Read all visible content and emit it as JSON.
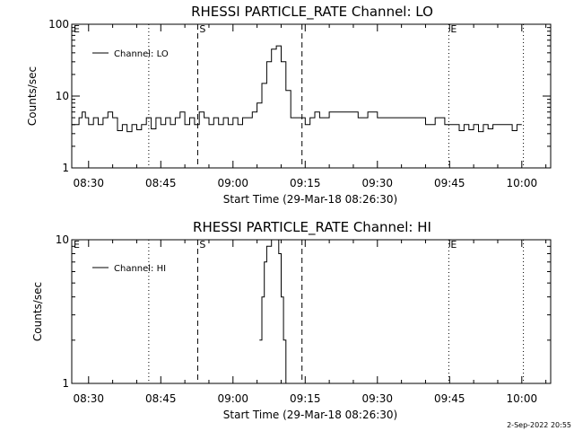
{
  "footer": {
    "timestamp": "2-Sep-2022 20:55"
  },
  "chart_data": [
    {
      "type": "line",
      "title": "RHESSI PARTICLE_RATE Channel: LO",
      "xlabel": "Start Time (29-Mar-18 08:26:30)",
      "ylabel": "Counts/sec",
      "y_scale": "log",
      "ylim": [
        1,
        100
      ],
      "y_ticks": [
        "1",
        "10",
        "100"
      ],
      "xlim": [
        "08:26:30",
        "10:06:00"
      ],
      "x_ticks": [
        "08:30",
        "08:45",
        "09:00",
        "09:15",
        "09:30",
        "09:45",
        "10:00"
      ],
      "legend": {
        "position": "top-left",
        "entries": [
          "Channel: LO"
        ]
      },
      "markers": [
        {
          "label": "E",
          "time": "08:26:30",
          "style": "none"
        },
        {
          "label": "",
          "time": "08:42:30",
          "style": "dotted"
        },
        {
          "label": "S",
          "time": "08:52:40",
          "style": "dashed"
        },
        {
          "label": "",
          "time": "09:14:20",
          "style": "dashed"
        },
        {
          "label": "E",
          "time": "09:44:50",
          "style": "dotted"
        },
        {
          "label": "",
          "time": "10:00:20",
          "style": "dotted"
        }
      ],
      "series": [
        {
          "name": "Channel: LO",
          "points": [
            [
              "08:26:30",
              4
            ],
            [
              "08:28:00",
              5
            ],
            [
              "08:28:40",
              6
            ],
            [
              "08:29:20",
              5
            ],
            [
              "08:30:00",
              4
            ],
            [
              "08:31:00",
              5
            ],
            [
              "08:32:00",
              4
            ],
            [
              "08:33:00",
              5
            ],
            [
              "08:34:00",
              6
            ],
            [
              "08:35:00",
              5
            ],
            [
              "08:36:00",
              3.3
            ],
            [
              "08:37:00",
              4
            ],
            [
              "08:38:00",
              3.2
            ],
            [
              "08:39:00",
              4
            ],
            [
              "08:40:00",
              3.4
            ],
            [
              "08:41:00",
              4
            ],
            [
              "08:42:00",
              5
            ],
            [
              "08:43:00",
              3.5
            ],
            [
              "08:44:00",
              5
            ],
            [
              "08:45:00",
              4
            ],
            [
              "08:46:00",
              5
            ],
            [
              "08:47:00",
              4
            ],
            [
              "08:48:00",
              5
            ],
            [
              "08:49:00",
              6
            ],
            [
              "08:50:00",
              4
            ],
            [
              "08:51:00",
              5
            ],
            [
              "08:52:00",
              4
            ],
            [
              "08:53:00",
              6
            ],
            [
              "08:54:00",
              5
            ],
            [
              "08:55:00",
              4
            ],
            [
              "08:56:00",
              5
            ],
            [
              "08:57:00",
              4
            ],
            [
              "08:58:00",
              5
            ],
            [
              "08:59:00",
              4
            ],
            [
              "09:00:00",
              5
            ],
            [
              "09:01:00",
              4
            ],
            [
              "09:02:00",
              5
            ],
            [
              "09:03:00",
              5
            ],
            [
              "09:04:00",
              6
            ],
            [
              "09:05:00",
              8
            ],
            [
              "09:06:00",
              15
            ],
            [
              "09:07:00",
              30
            ],
            [
              "09:08:00",
              45
            ],
            [
              "09:09:00",
              50
            ],
            [
              "09:10:00",
              30
            ],
            [
              "09:11:00",
              12
            ],
            [
              "09:12:00",
              5
            ],
            [
              "09:13:00",
              5
            ],
            [
              "09:14:00",
              5
            ],
            [
              "09:15:00",
              4
            ],
            [
              "09:16:00",
              5
            ],
            [
              "09:17:00",
              6
            ],
            [
              "09:18:00",
              5
            ],
            [
              "09:20:00",
              6
            ],
            [
              "09:22:00",
              6
            ],
            [
              "09:24:00",
              6
            ],
            [
              "09:26:00",
              5
            ],
            [
              "09:28:00",
              6
            ],
            [
              "09:30:00",
              5
            ],
            [
              "09:32:00",
              5
            ],
            [
              "09:34:00",
              5
            ],
            [
              "09:36:00",
              5
            ],
            [
              "09:38:00",
              5
            ],
            [
              "09:40:00",
              4
            ],
            [
              "09:42:00",
              5
            ],
            [
              "09:44:00",
              4
            ],
            [
              "09:46:00",
              4
            ],
            [
              "09:47:00",
              3.3
            ],
            [
              "09:48:00",
              4
            ],
            [
              "09:49:00",
              3.4
            ],
            [
              "09:50:00",
              4
            ],
            [
              "09:51:00",
              3.2
            ],
            [
              "09:52:00",
              4
            ],
            [
              "09:53:00",
              3.5
            ],
            [
              "09:54:00",
              4
            ],
            [
              "09:55:00",
              4
            ],
            [
              "09:57:00",
              4
            ],
            [
              "09:58:00",
              3.3
            ],
            [
              "09:59:00",
              4
            ],
            [
              "10:00:00",
              4
            ]
          ]
        }
      ]
    },
    {
      "type": "line",
      "title": "RHESSI PARTICLE_RATE Channel: HI",
      "xlabel": "Start Time (29-Mar-18 08:26:30)",
      "ylabel": "Counts/sec",
      "y_scale": "log",
      "ylim": [
        1,
        10
      ],
      "y_ticks": [
        "1",
        "10"
      ],
      "xlim": [
        "08:26:30",
        "10:06:00"
      ],
      "x_ticks": [
        "08:30",
        "08:45",
        "09:00",
        "09:15",
        "09:30",
        "09:45",
        "10:00"
      ],
      "legend": {
        "position": "top-left",
        "entries": [
          "Channel: HI"
        ]
      },
      "markers": [
        {
          "label": "E",
          "time": "08:26:30",
          "style": "none"
        },
        {
          "label": "",
          "time": "08:42:30",
          "style": "dotted"
        },
        {
          "label": "S",
          "time": "08:52:40",
          "style": "dashed"
        },
        {
          "label": "",
          "time": "09:14:20",
          "style": "dashed"
        },
        {
          "label": "E",
          "time": "09:44:50",
          "style": "dotted"
        },
        {
          "label": "",
          "time": "10:00:20",
          "style": "dotted"
        }
      ],
      "series": [
        {
          "name": "Channel: HI",
          "points": [
            [
              "09:05:30",
              2
            ],
            [
              "09:06:00",
              4
            ],
            [
              "09:06:30",
              7
            ],
            [
              "09:07:00",
              9
            ],
            [
              "09:08:00",
              10
            ],
            [
              "09:09:00",
              10
            ],
            [
              "09:09:30",
              8
            ],
            [
              "09:10:00",
              4
            ],
            [
              "09:10:30",
              2
            ],
            [
              "09:11:00",
              1
            ]
          ]
        }
      ]
    }
  ]
}
